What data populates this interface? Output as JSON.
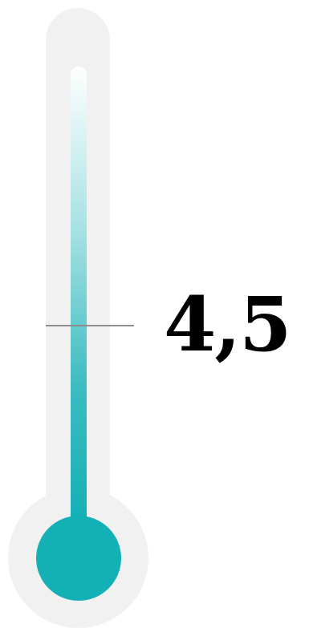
{
  "thermometer": {
    "value_label": "4,5",
    "level": 0.55,
    "fill_color": "#13b0b6",
    "track_color": "#f1f1f1",
    "marker_color": "#8e8e8e"
  }
}
